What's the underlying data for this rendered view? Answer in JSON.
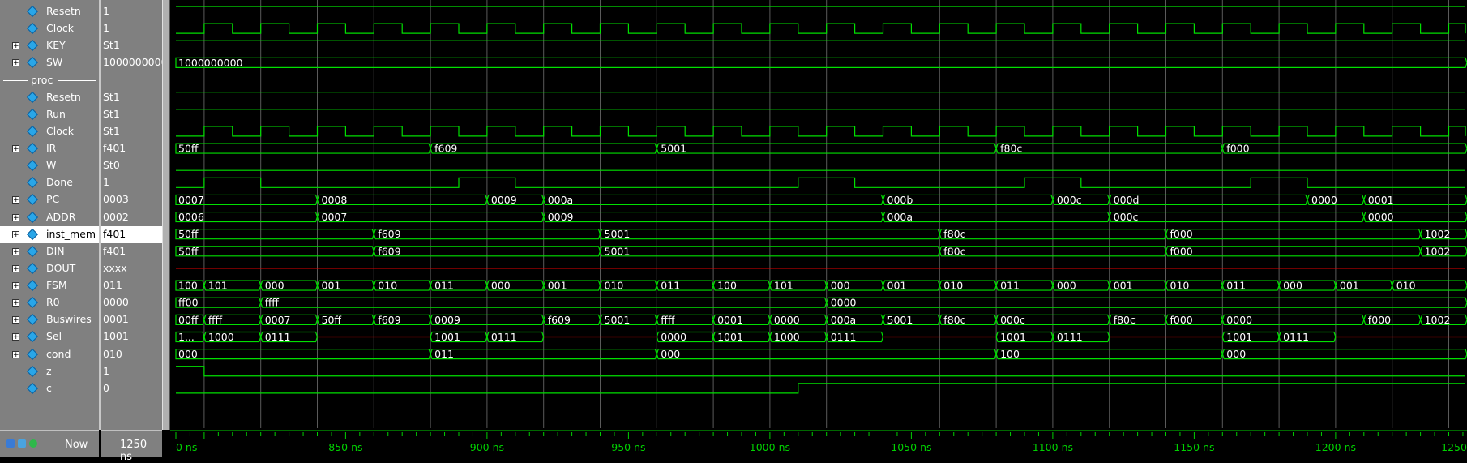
{
  "signals": [
    {
      "name": "Resetn",
      "value": "1",
      "expandable": false,
      "icon": "signal-icon",
      "type": "bit",
      "init": 1,
      "edges": []
    },
    {
      "name": "Clock",
      "value": "1",
      "expandable": false,
      "icon": "signal-icon",
      "type": "clock"
    },
    {
      "name": "KEY",
      "value": "St1",
      "expandable": true,
      "icon": "signal-icon",
      "type": "bit",
      "init": 1,
      "edges": []
    },
    {
      "name": "SW",
      "value": "1000000000",
      "expandable": true,
      "icon": "signal-icon",
      "type": "bus",
      "segments": [
        {
          "t": 790,
          "v": "1000000000"
        }
      ]
    },
    {
      "group": "proc"
    },
    {
      "name": "Resetn",
      "value": "St1",
      "expandable": false,
      "icon": "signal-icon",
      "type": "bit",
      "init": 1,
      "edges": []
    },
    {
      "name": "Run",
      "value": "St1",
      "expandable": false,
      "icon": "signal-icon",
      "type": "bit",
      "init": 1,
      "edges": []
    },
    {
      "name": "Clock",
      "value": "St1",
      "expandable": false,
      "icon": "signal-icon",
      "type": "clock"
    },
    {
      "name": "IR",
      "value": "f401",
      "expandable": true,
      "icon": "signal-icon",
      "type": "bus",
      "segments": [
        {
          "t": 790,
          "v": "50ff"
        },
        {
          "t": 880,
          "v": "f609"
        },
        {
          "t": 960,
          "v": "5001"
        },
        {
          "t": 1080,
          "v": "f80c"
        },
        {
          "t": 1160,
          "v": "f000"
        }
      ]
    },
    {
      "name": "W",
      "value": "St0",
      "expandable": false,
      "icon": "signal-icon",
      "type": "bit",
      "init": 0,
      "edges": []
    },
    {
      "name": "Done",
      "value": "1",
      "expandable": false,
      "icon": "signal-icon",
      "type": "bit",
      "init": 0,
      "edges": [
        800,
        820,
        890,
        910,
        1010,
        1030,
        1090,
        1110,
        1170,
        1190
      ]
    },
    {
      "name": "PC",
      "value": "0003",
      "expandable": true,
      "icon": "signal-icon",
      "type": "bus",
      "segments": [
        {
          "t": 790,
          "v": "0007"
        },
        {
          "t": 840,
          "v": "0008"
        },
        {
          "t": 900,
          "v": "0009"
        },
        {
          "t": 920,
          "v": "000a"
        },
        {
          "t": 1040,
          "v": "000b"
        },
        {
          "t": 1100,
          "v": "000c"
        },
        {
          "t": 1120,
          "v": "000d"
        },
        {
          "t": 1190,
          "v": "0000"
        },
        {
          "t": 1210,
          "v": "0001"
        }
      ]
    },
    {
      "name": "ADDR",
      "value": "0002",
      "expandable": true,
      "icon": "signal-icon",
      "type": "bus",
      "segments": [
        {
          "t": 790,
          "v": "0006"
        },
        {
          "t": 840,
          "v": "0007"
        },
        {
          "t": 920,
          "v": "0009"
        },
        {
          "t": 1040,
          "v": "000a"
        },
        {
          "t": 1120,
          "v": "000c"
        },
        {
          "t": 1210,
          "v": "0000"
        }
      ]
    },
    {
      "name": "inst_mem",
      "value": "f401",
      "expandable": true,
      "icon": "signal-icon",
      "type": "bus",
      "selected": true,
      "segments": [
        {
          "t": 790,
          "v": "50ff"
        },
        {
          "t": 860,
          "v": "f609"
        },
        {
          "t": 940,
          "v": "5001"
        },
        {
          "t": 1060,
          "v": "f80c"
        },
        {
          "t": 1140,
          "v": "f000"
        },
        {
          "t": 1230,
          "v": "1002"
        }
      ]
    },
    {
      "name": "DIN",
      "value": "f401",
      "expandable": true,
      "icon": "signal-icon",
      "type": "bus",
      "segments": [
        {
          "t": 790,
          "v": "50ff"
        },
        {
          "t": 860,
          "v": "f609"
        },
        {
          "t": 940,
          "v": "5001"
        },
        {
          "t": 1060,
          "v": "f80c"
        },
        {
          "t": 1140,
          "v": "f000"
        },
        {
          "t": 1230,
          "v": "1002"
        }
      ]
    },
    {
      "name": "DOUT",
      "value": "xxxx",
      "expandable": true,
      "icon": "signal-icon",
      "type": "unknown"
    },
    {
      "name": "FSM",
      "value": "011",
      "expandable": true,
      "icon": "signal-icon",
      "type": "bus",
      "segments": [
        {
          "t": 790,
          "v": "100"
        },
        {
          "t": 800,
          "v": "101"
        },
        {
          "t": 820,
          "v": "000"
        },
        {
          "t": 840,
          "v": "001"
        },
        {
          "t": 860,
          "v": "010"
        },
        {
          "t": 880,
          "v": "011"
        },
        {
          "t": 900,
          "v": "000"
        },
        {
          "t": 920,
          "v": "001"
        },
        {
          "t": 940,
          "v": "010"
        },
        {
          "t": 960,
          "v": "011"
        },
        {
          "t": 980,
          "v": "100"
        },
        {
          "t": 1000,
          "v": "101"
        },
        {
          "t": 1020,
          "v": "000"
        },
        {
          "t": 1040,
          "v": "001"
        },
        {
          "t": 1060,
          "v": "010"
        },
        {
          "t": 1080,
          "v": "011"
        },
        {
          "t": 1100,
          "v": "000"
        },
        {
          "t": 1120,
          "v": "001"
        },
        {
          "t": 1140,
          "v": "010"
        },
        {
          "t": 1160,
          "v": "011"
        },
        {
          "t": 1180,
          "v": "000"
        },
        {
          "t": 1200,
          "v": "001"
        },
        {
          "t": 1220,
          "v": "010"
        }
      ]
    },
    {
      "name": "R0",
      "value": "0000",
      "expandable": true,
      "icon": "signal-icon",
      "type": "bus",
      "segments": [
        {
          "t": 790,
          "v": "ff00"
        },
        {
          "t": 820,
          "v": "ffff"
        },
        {
          "t": 1020,
          "v": "0000"
        }
      ]
    },
    {
      "name": "Buswires",
      "value": "0001",
      "expandable": true,
      "icon": "signal-icon",
      "type": "bus",
      "segments": [
        {
          "t": 790,
          "v": "00ff"
        },
        {
          "t": 800,
          "v": "ffff"
        },
        {
          "t": 820,
          "v": "0007"
        },
        {
          "t": 840,
          "v": "50ff"
        },
        {
          "t": 860,
          "v": "f609"
        },
        {
          "t": 880,
          "v": "0009"
        },
        {
          "t": 920,
          "v": "f609"
        },
        {
          "t": 940,
          "v": "5001"
        },
        {
          "t": 960,
          "v": "ffff"
        },
        {
          "t": 980,
          "v": "0001"
        },
        {
          "t": 1000,
          "v": "0000"
        },
        {
          "t": 1020,
          "v": "000a"
        },
        {
          "t": 1040,
          "v": "5001"
        },
        {
          "t": 1060,
          "v": "f80c"
        },
        {
          "t": 1080,
          "v": "000c"
        },
        {
          "t": 1120,
          "v": "f80c"
        },
        {
          "t": 1140,
          "v": "f000"
        },
        {
          "t": 1160,
          "v": "0000"
        },
        {
          "t": 1210,
          "v": "f000"
        },
        {
          "t": 1230,
          "v": "1002"
        }
      ]
    },
    {
      "name": "Sel",
      "value": "1001",
      "expandable": true,
      "icon": "signal-icon",
      "type": "bus",
      "segments": [
        {
          "t": 790,
          "v": "1..."
        },
        {
          "t": 800,
          "v": "1000"
        },
        {
          "t": 820,
          "v": "0111"
        },
        {
          "t": 840,
          "v": null
        },
        {
          "t": 880,
          "v": "1001"
        },
        {
          "t": 900,
          "v": "0111"
        },
        {
          "t": 920,
          "v": null
        },
        {
          "t": 960,
          "v": "0000"
        },
        {
          "t": 980,
          "v": "1001"
        },
        {
          "t": 1000,
          "v": "1000"
        },
        {
          "t": 1020,
          "v": "0111"
        },
        {
          "t": 1040,
          "v": null
        },
        {
          "t": 1080,
          "v": "1001"
        },
        {
          "t": 1100,
          "v": "0111"
        },
        {
          "t": 1120,
          "v": null
        },
        {
          "t": 1160,
          "v": "1001"
        },
        {
          "t": 1180,
          "v": "0111"
        },
        {
          "t": 1200,
          "v": null
        }
      ]
    },
    {
      "name": "cond",
      "value": "010",
      "expandable": true,
      "icon": "signal-icon",
      "type": "bus",
      "segments": [
        {
          "t": 790,
          "v": "000"
        },
        {
          "t": 880,
          "v": "011"
        },
        {
          "t": 960,
          "v": "000"
        },
        {
          "t": 1080,
          "v": "100"
        },
        {
          "t": 1160,
          "v": "000"
        }
      ]
    },
    {
      "name": "z",
      "value": "1",
      "expandable": false,
      "icon": "signal-icon",
      "type": "bit",
      "init": 1,
      "edges": [
        800
      ]
    },
    {
      "name": "c",
      "value": "0",
      "expandable": false,
      "icon": "signal-icon",
      "type": "bit",
      "init": 0,
      "edges": [
        1010
      ]
    }
  ],
  "time_axis": {
    "start": 790,
    "end": 1250,
    "clock_half_period": 10,
    "first_rise": 800,
    "labels": [
      {
        "t": 790,
        "text": "0 ns"
      },
      {
        "t": 850,
        "text": "850 ns"
      },
      {
        "t": 900,
        "text": "900 ns"
      },
      {
        "t": 950,
        "text": "950 ns"
      },
      {
        "t": 1000,
        "text": "1000 ns"
      },
      {
        "t": 1050,
        "text": "1050 ns"
      },
      {
        "t": 1100,
        "text": "1100 ns"
      },
      {
        "t": 1150,
        "text": "1150 ns"
      },
      {
        "t": 1200,
        "text": "1200 ns"
      },
      {
        "t": 1250,
        "text": "1250 ns"
      }
    ],
    "grid_times": [
      800,
      820,
      840,
      860,
      880,
      900,
      920,
      940,
      960,
      980,
      1000,
      1020,
      1040,
      1060,
      1080,
      1100,
      1120,
      1140,
      1160,
      1180,
      1200,
      1220,
      1240
    ]
  },
  "footer": {
    "now_label": "Now",
    "now_value": "1250 ns"
  },
  "colors": {
    "wave": "#00e000",
    "unknown": "#e00000",
    "grid": "#5a5a5a",
    "panel": "#808080",
    "text": "#ffffff",
    "axis": "#00d000"
  }
}
